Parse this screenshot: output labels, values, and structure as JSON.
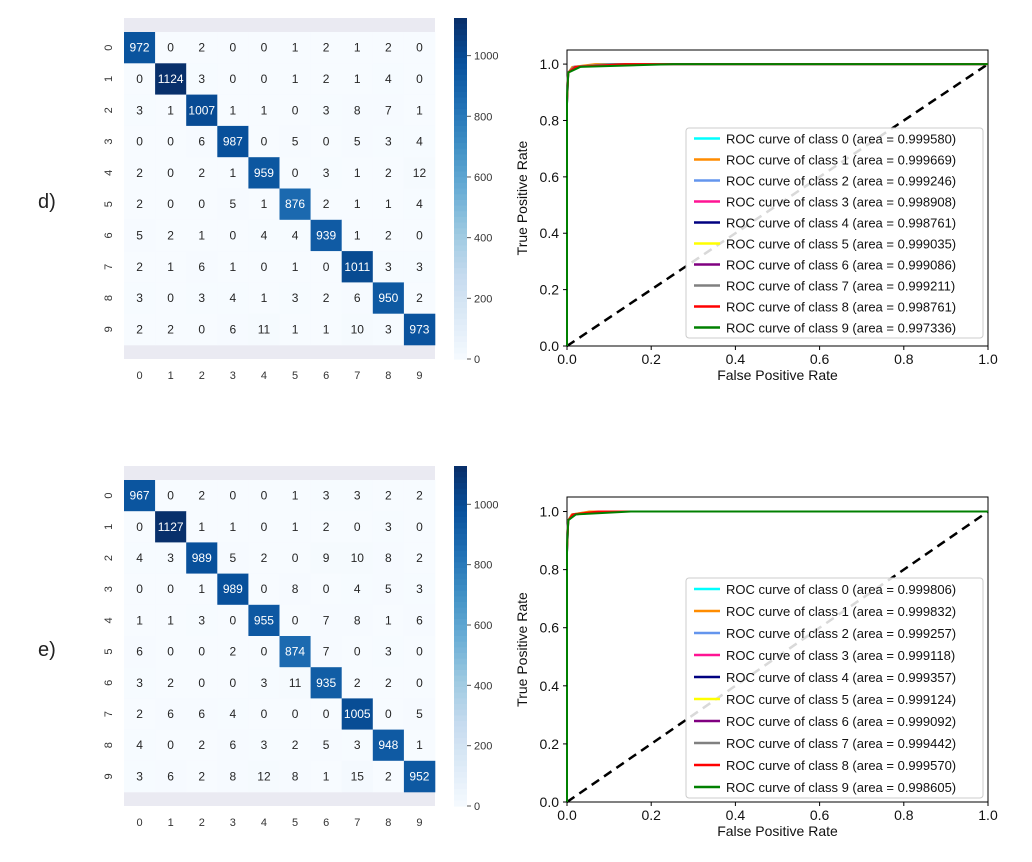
{
  "panels": [
    {
      "label": "d)"
    },
    {
      "label": "e)"
    }
  ],
  "chart_data": [
    {
      "type": "heatmap",
      "panel": "d)",
      "row_labels": [
        "0",
        "1",
        "2",
        "3",
        "4",
        "5",
        "6",
        "7",
        "8",
        "9"
      ],
      "col_labels": [
        "0",
        "1",
        "2",
        "3",
        "4",
        "5",
        "6",
        "7",
        "8",
        "9"
      ],
      "values": [
        [
          972,
          0,
          2,
          0,
          0,
          1,
          2,
          1,
          2,
          0
        ],
        [
          0,
          1124,
          3,
          0,
          0,
          1,
          2,
          1,
          4,
          0
        ],
        [
          3,
          1,
          1007,
          1,
          1,
          0,
          3,
          8,
          7,
          1
        ],
        [
          0,
          0,
          6,
          987,
          0,
          5,
          0,
          5,
          3,
          4
        ],
        [
          2,
          0,
          2,
          1,
          959,
          0,
          3,
          1,
          2,
          12
        ],
        [
          2,
          0,
          0,
          5,
          1,
          876,
          2,
          1,
          1,
          4
        ],
        [
          5,
          2,
          1,
          0,
          4,
          4,
          939,
          1,
          2,
          0
        ],
        [
          2,
          1,
          6,
          1,
          0,
          1,
          0,
          1011,
          3,
          3
        ],
        [
          3,
          0,
          3,
          4,
          1,
          3,
          2,
          6,
          950,
          2
        ],
        [
          2,
          2,
          0,
          6,
          11,
          1,
          1,
          10,
          3,
          973
        ]
      ],
      "colorbar": {
        "min": 0,
        "max": 1124,
        "ticks": [
          0,
          200,
          400,
          600,
          800,
          1000
        ],
        "colormap": "Blues"
      }
    },
    {
      "type": "line",
      "panel": "d)",
      "xlabel": "False Positive Rate",
      "ylabel": "True Positive Rate",
      "xlim": [
        0,
        1.0
      ],
      "ylim": [
        0,
        1.05
      ],
      "xticks": [
        "0.0",
        "0.2",
        "0.4",
        "0.6",
        "0.8",
        "1.0"
      ],
      "yticks": [
        "0.0",
        "0.2",
        "0.4",
        "0.6",
        "0.8",
        "1.0"
      ],
      "diagonal": "dashed",
      "legend_position": "lower-right",
      "series": [
        {
          "name": "ROC curve of class 0 (area = 0.999580)",
          "color": "#00ffff",
          "area": 0.99958
        },
        {
          "name": "ROC curve of class 1 (area = 0.999669)",
          "color": "#ff8c00",
          "area": 0.999669
        },
        {
          "name": "ROC curve of class 2 (area = 0.999246)",
          "color": "#6495ed",
          "area": 0.999246
        },
        {
          "name": "ROC curve of class 3 (area = 0.998908)",
          "color": "#ff1493",
          "area": 0.998908
        },
        {
          "name": "ROC curve of class 4 (area = 0.998761)",
          "color": "#000080",
          "area": 0.998761
        },
        {
          "name": "ROC curve of class 5 (area = 0.999035)",
          "color": "#ffff00",
          "area": 0.999035
        },
        {
          "name": "ROC curve of class 6 (area = 0.999086)",
          "color": "#800080",
          "area": 0.999086
        },
        {
          "name": "ROC curve of class 7 (area = 0.999211)",
          "color": "#808080",
          "area": 0.999211
        },
        {
          "name": "ROC curve of class 8 (area = 0.998761)",
          "color": "#ff0000",
          "area": 0.998761
        },
        {
          "name": "ROC curve of class 9 (area = 0.997336)",
          "color": "#008000",
          "area": 0.997336
        }
      ]
    },
    {
      "type": "heatmap",
      "panel": "e)",
      "row_labels": [
        "0",
        "1",
        "2",
        "3",
        "4",
        "5",
        "6",
        "7",
        "8",
        "9"
      ],
      "col_labels": [
        "0",
        "1",
        "2",
        "3",
        "4",
        "5",
        "6",
        "7",
        "8",
        "9"
      ],
      "values": [
        [
          967,
          0,
          2,
          0,
          0,
          1,
          3,
          3,
          2,
          2
        ],
        [
          0,
          1127,
          1,
          1,
          0,
          1,
          2,
          0,
          3,
          0
        ],
        [
          4,
          3,
          989,
          5,
          2,
          0,
          9,
          10,
          8,
          2
        ],
        [
          0,
          0,
          1,
          989,
          0,
          8,
          0,
          4,
          5,
          3
        ],
        [
          1,
          1,
          3,
          0,
          955,
          0,
          7,
          8,
          1,
          6
        ],
        [
          6,
          0,
          0,
          2,
          0,
          874,
          7,
          0,
          3,
          0
        ],
        [
          3,
          2,
          0,
          0,
          3,
          11,
          935,
          2,
          2,
          0
        ],
        [
          2,
          6,
          6,
          4,
          0,
          0,
          0,
          1005,
          0,
          5
        ],
        [
          4,
          0,
          2,
          6,
          3,
          2,
          5,
          3,
          948,
          1
        ],
        [
          3,
          6,
          2,
          8,
          12,
          8,
          1,
          15,
          2,
          952
        ]
      ],
      "colorbar": {
        "min": 0,
        "max": 1127,
        "ticks": [
          0,
          200,
          400,
          600,
          800,
          1000
        ],
        "colormap": "Blues"
      }
    },
    {
      "type": "line",
      "panel": "e)",
      "xlabel": "False Positive Rate",
      "ylabel": "True Positive Rate",
      "xlim": [
        0,
        1.0
      ],
      "ylim": [
        0,
        1.05
      ],
      "xticks": [
        "0.0",
        "0.2",
        "0.4",
        "0.6",
        "0.8",
        "1.0"
      ],
      "yticks": [
        "0.0",
        "0.2",
        "0.4",
        "0.6",
        "0.8",
        "1.0"
      ],
      "diagonal": "dashed",
      "legend_position": "lower-right",
      "series": [
        {
          "name": "ROC curve of class 0 (area = 0.999806)",
          "color": "#00ffff",
          "area": 0.999806
        },
        {
          "name": "ROC curve of class 1 (area = 0.999832)",
          "color": "#ff8c00",
          "area": 0.999832
        },
        {
          "name": "ROC curve of class 2 (area = 0.999257)",
          "color": "#6495ed",
          "area": 0.999257
        },
        {
          "name": "ROC curve of class 3 (area = 0.999118)",
          "color": "#ff1493",
          "area": 0.999118
        },
        {
          "name": "ROC curve of class 4 (area = 0.999357)",
          "color": "#000080",
          "area": 0.999357
        },
        {
          "name": "ROC curve of class 5 (area = 0.999124)",
          "color": "#ffff00",
          "area": 0.999124
        },
        {
          "name": "ROC curve of class 6 (area = 0.999092)",
          "color": "#800080",
          "area": 0.999092
        },
        {
          "name": "ROC curve of class 7 (area = 0.999442)",
          "color": "#808080",
          "area": 0.999442
        },
        {
          "name": "ROC curve of class 8 (area = 0.999570)",
          "color": "#ff0000",
          "area": 0.99957
        },
        {
          "name": "ROC curve of class 9 (area = 0.998605)",
          "color": "#008000",
          "area": 0.998605
        }
      ]
    }
  ]
}
